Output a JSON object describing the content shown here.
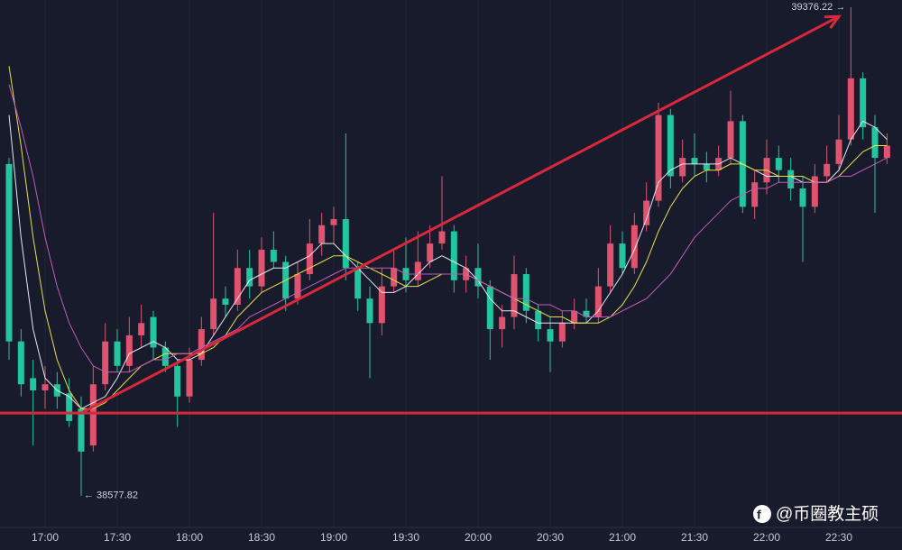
{
  "chart_data": {
    "type": "candlestick",
    "categories": [
      null,
      null,
      null,
      "17:00",
      null,
      null,
      null,
      null,
      null,
      "17:30",
      null,
      null,
      null,
      null,
      null,
      "18:00",
      null,
      null,
      null,
      null,
      null,
      "18:30",
      null,
      null,
      null,
      null,
      null,
      "19:00",
      null,
      null,
      null,
      null,
      null,
      "19:30",
      null,
      null,
      null,
      null,
      null,
      "20:00",
      null,
      null,
      null,
      null,
      null,
      "20:30",
      null,
      null,
      null,
      null,
      null,
      "21:00",
      null,
      null,
      null,
      null,
      null,
      "21:30",
      null,
      null,
      null,
      null,
      null,
      "22:00",
      null,
      null,
      null,
      null,
      null,
      "22:30",
      null,
      null,
      null,
      null
    ],
    "open": [
      39120,
      38830,
      38770,
      38750,
      38760,
      38745,
      38720,
      38660,
      38760,
      38830,
      38790,
      38840,
      38870,
      38820,
      38790,
      38740,
      38800,
      38850,
      38900,
      38890,
      38950,
      38920,
      38980,
      38960,
      38900,
      38940,
      38990,
      39020,
      39030,
      38950,
      38900,
      38860,
      38920,
      38950,
      38930,
      38960,
      38990,
      39010,
      38930,
      38950,
      38920,
      38850,
      38870,
      38940,
      38880,
      38850,
      38830,
      38860,
      38880,
      38870,
      38920,
      38990,
      38950,
      39020,
      39060,
      39200,
      39100,
      39130,
      39120,
      39110,
      39130,
      39190,
      39050,
      39090,
      39130,
      39110,
      39080,
      39050,
      39100,
      39120,
      39160,
      39260,
      39180,
      39130
    ],
    "high": [
      39130,
      38850,
      38800,
      38790,
      38780,
      38770,
      38740,
      38790,
      38860,
      38850,
      38870,
      38890,
      38880,
      38830,
      38800,
      38820,
      38870,
      39040,
      38920,
      38980,
      38980,
      39000,
      39010,
      38970,
      38960,
      39030,
      39040,
      39050,
      39170,
      38960,
      38920,
      38950,
      38980,
      39000,
      39010,
      39020,
      39100,
      39020,
      38970,
      38990,
      38930,
      38890,
      38970,
      38950,
      38890,
      38870,
      38880,
      38900,
      38900,
      38950,
      39020,
      39010,
      39040,
      39090,
      39220,
      39210,
      39160,
      39170,
      39140,
      39150,
      39240,
      39200,
      39110,
      39160,
      39150,
      39130,
      39100,
      39120,
      39150,
      39200,
      39376.22,
      39270,
      39200,
      39170
    ],
    "low": [
      38800,
      38740,
      38660,
      38720,
      38720,
      38690,
      38577.82,
      38650,
      38750,
      38780,
      38780,
      38820,
      38800,
      38780,
      38690,
      38730,
      38790,
      38840,
      38870,
      38880,
      38900,
      38910,
      38950,
      38880,
      38890,
      38930,
      38970,
      38990,
      38930,
      38880,
      38770,
      38840,
      38910,
      38910,
      38920,
      38950,
      38980,
      38910,
      38910,
      38900,
      38800,
      38820,
      38850,
      38860,
      38830,
      38780,
      38820,
      38850,
      38860,
      38860,
      38910,
      38940,
      38940,
      39010,
      39050,
      39080,
      39090,
      39100,
      39090,
      39100,
      39120,
      39040,
      39030,
      39070,
      39090,
      39060,
      38960,
      39040,
      39090,
      39110,
      39150,
      39160,
      39040,
      39120
    ],
    "close": [
      38830,
      38760,
      38750,
      38760,
      38740,
      38700,
      38650,
      38760,
      38830,
      38790,
      38840,
      38860,
      38820,
      38790,
      38740,
      38800,
      38850,
      38900,
      38890,
      38950,
      38920,
      38980,
      38960,
      38900,
      38940,
      38990,
      39020,
      39030,
      38950,
      38900,
      38860,
      38920,
      38950,
      38930,
      38960,
      38990,
      39010,
      38930,
      38950,
      38920,
      38850,
      38870,
      38940,
      38880,
      38850,
      38830,
      38860,
      38880,
      38870,
      38920,
      38990,
      38950,
      39020,
      39060,
      39200,
      39100,
      39130,
      39120,
      39110,
      39130,
      39190,
      39050,
      39090,
      39130,
      39110,
      39080,
      39050,
      39100,
      39120,
      39160,
      39260,
      39180,
      39130,
      39150
    ],
    "up_color": "#e0536e",
    "down_color": "#22c59d",
    "series": [
      {
        "color": "#e6e6f0",
        "values": [
          39200,
          39000,
          38850,
          38770,
          38750,
          38740,
          38720,
          38730,
          38740,
          38770,
          38810,
          38820,
          38830,
          38820,
          38800,
          38800,
          38810,
          38840,
          38870,
          38900,
          38930,
          38940,
          38950,
          38950,
          38960,
          38970,
          38990,
          38990,
          38970,
          38950,
          38930,
          38910,
          38910,
          38920,
          38940,
          38960,
          38970,
          38960,
          38950,
          38930,
          38900,
          38880,
          38880,
          38870,
          38860,
          38860,
          38860,
          38860,
          38860,
          38880,
          38910,
          38940,
          38980,
          39030,
          39090,
          39110,
          39120,
          39120,
          39120,
          39120,
          39130,
          39120,
          39110,
          39100,
          39100,
          39100,
          39090,
          39090,
          39090,
          39110,
          39160,
          39190,
          39180,
          39160
        ]
      },
      {
        "color": "#e8e04a",
        "values": [
          39280,
          39150,
          39000,
          38880,
          38800,
          38750,
          38720,
          38720,
          38730,
          38750,
          38770,
          38790,
          38800,
          38810,
          38810,
          38810,
          38810,
          38820,
          38840,
          38870,
          38890,
          38910,
          38920,
          38930,
          38940,
          38950,
          38960,
          38970,
          38970,
          38960,
          38950,
          38940,
          38930,
          38920,
          38920,
          38930,
          38940,
          38940,
          38940,
          38930,
          38920,
          38910,
          38900,
          38890,
          38880,
          38870,
          38870,
          38860,
          38860,
          38860,
          38870,
          38890,
          38920,
          38960,
          39010,
          39050,
          39080,
          39100,
          39110,
          39110,
          39120,
          39120,
          39110,
          39110,
          39100,
          39100,
          39100,
          39090,
          39090,
          39100,
          39120,
          39140,
          39150,
          39150
        ]
      },
      {
        "color": "#c25ab8",
        "values": [
          39250,
          39180,
          39100,
          39000,
          38920,
          38860,
          38820,
          38790,
          38780,
          38780,
          38780,
          38790,
          38800,
          38800,
          38810,
          38810,
          38820,
          38830,
          38840,
          38850,
          38870,
          38880,
          38890,
          38900,
          38910,
          38920,
          38930,
          38940,
          38950,
          38950,
          38950,
          38950,
          38950,
          38940,
          38940,
          38940,
          38940,
          38940,
          38940,
          38930,
          38920,
          38910,
          38900,
          38900,
          38890,
          38890,
          38880,
          38880,
          38870,
          38870,
          38870,
          38880,
          38890,
          38900,
          38920,
          38940,
          38970,
          39000,
          39020,
          39040,
          39060,
          39070,
          39080,
          39080,
          39090,
          39090,
          39090,
          39090,
          39090,
          39100,
          39100,
          39110,
          39120,
          39130
        ]
      }
    ],
    "ylim": [
      38526,
      39388
    ],
    "horizontal_line": 38713,
    "trend_line": {
      "from": [
        6,
        38713
      ],
      "to": [
        69,
        39361
      ]
    },
    "drawing_color": "#d9283c",
    "high_label": "39376.22 →",
    "low_label": "← 38577.82",
    "watermark": "@币圈教主硕"
  }
}
